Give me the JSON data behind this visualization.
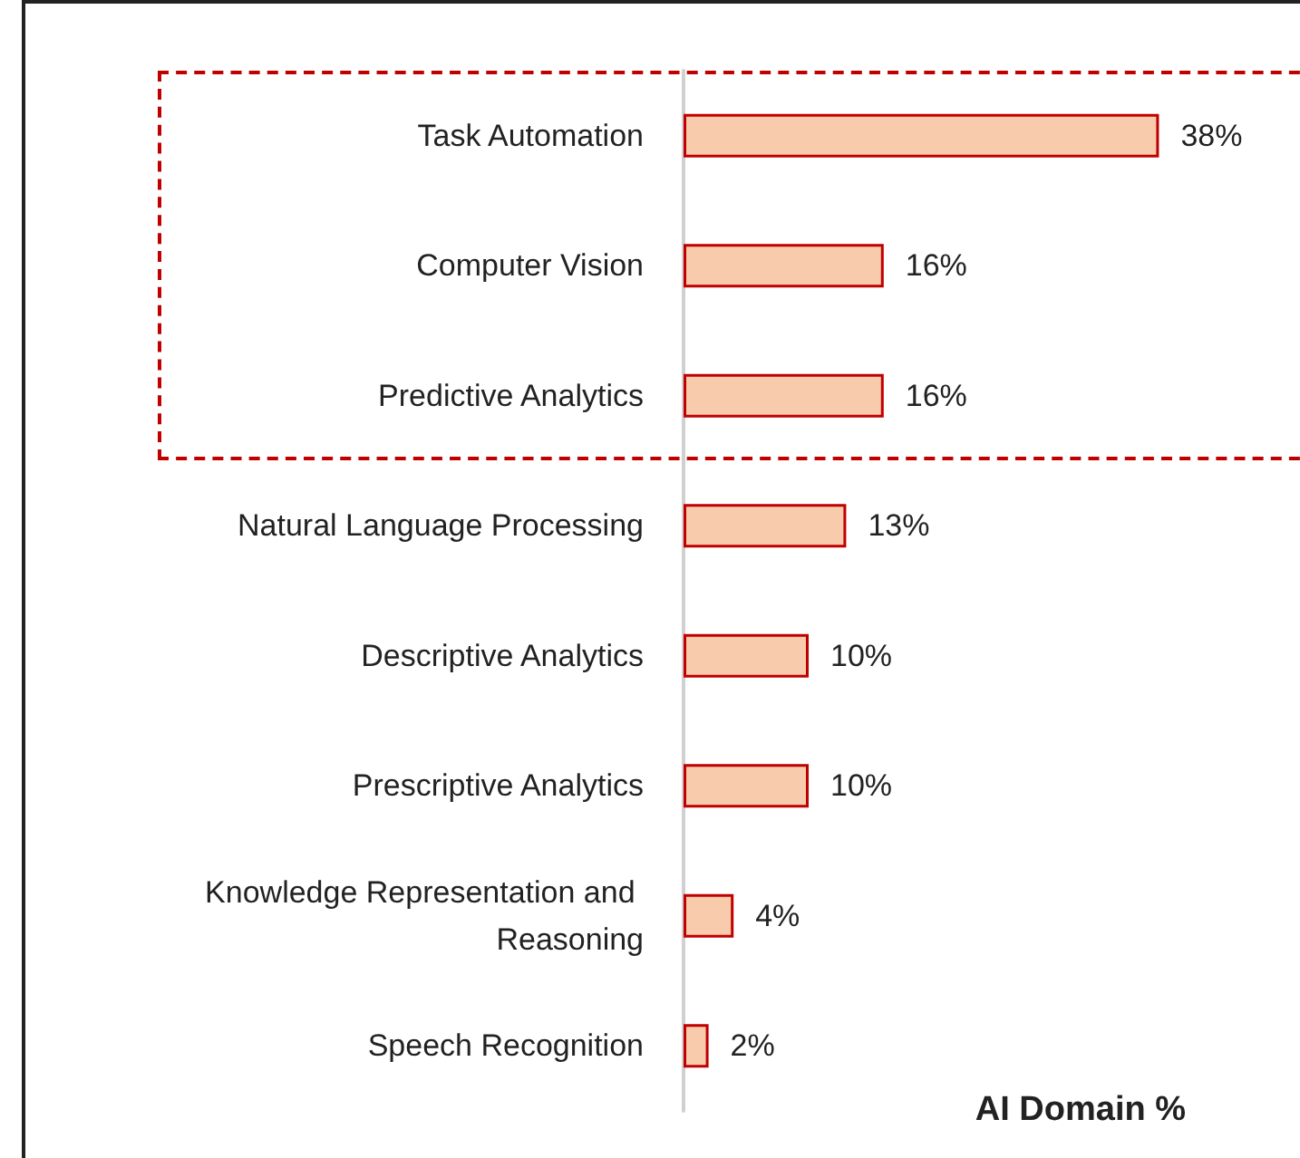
{
  "chart_data": {
    "type": "bar",
    "orientation": "horizontal",
    "title": "AI Domain %",
    "categories": [
      "Task Automation",
      "Computer Vision",
      "Predictive Analytics",
      "Natural Language Processing",
      "Descriptive Analytics",
      "Prescriptive Analytics",
      "Knowledge Representation and Reasoning",
      "Speech Recognition"
    ],
    "values": [
      38,
      16,
      16,
      13,
      10,
      10,
      4,
      2
    ],
    "value_labels": [
      "38%",
      "16%",
      "16%",
      "13%",
      "10%",
      "10%",
      "4%",
      "2%"
    ],
    "color": "#f8cbad",
    "tick_labels": "y"
  }
}
